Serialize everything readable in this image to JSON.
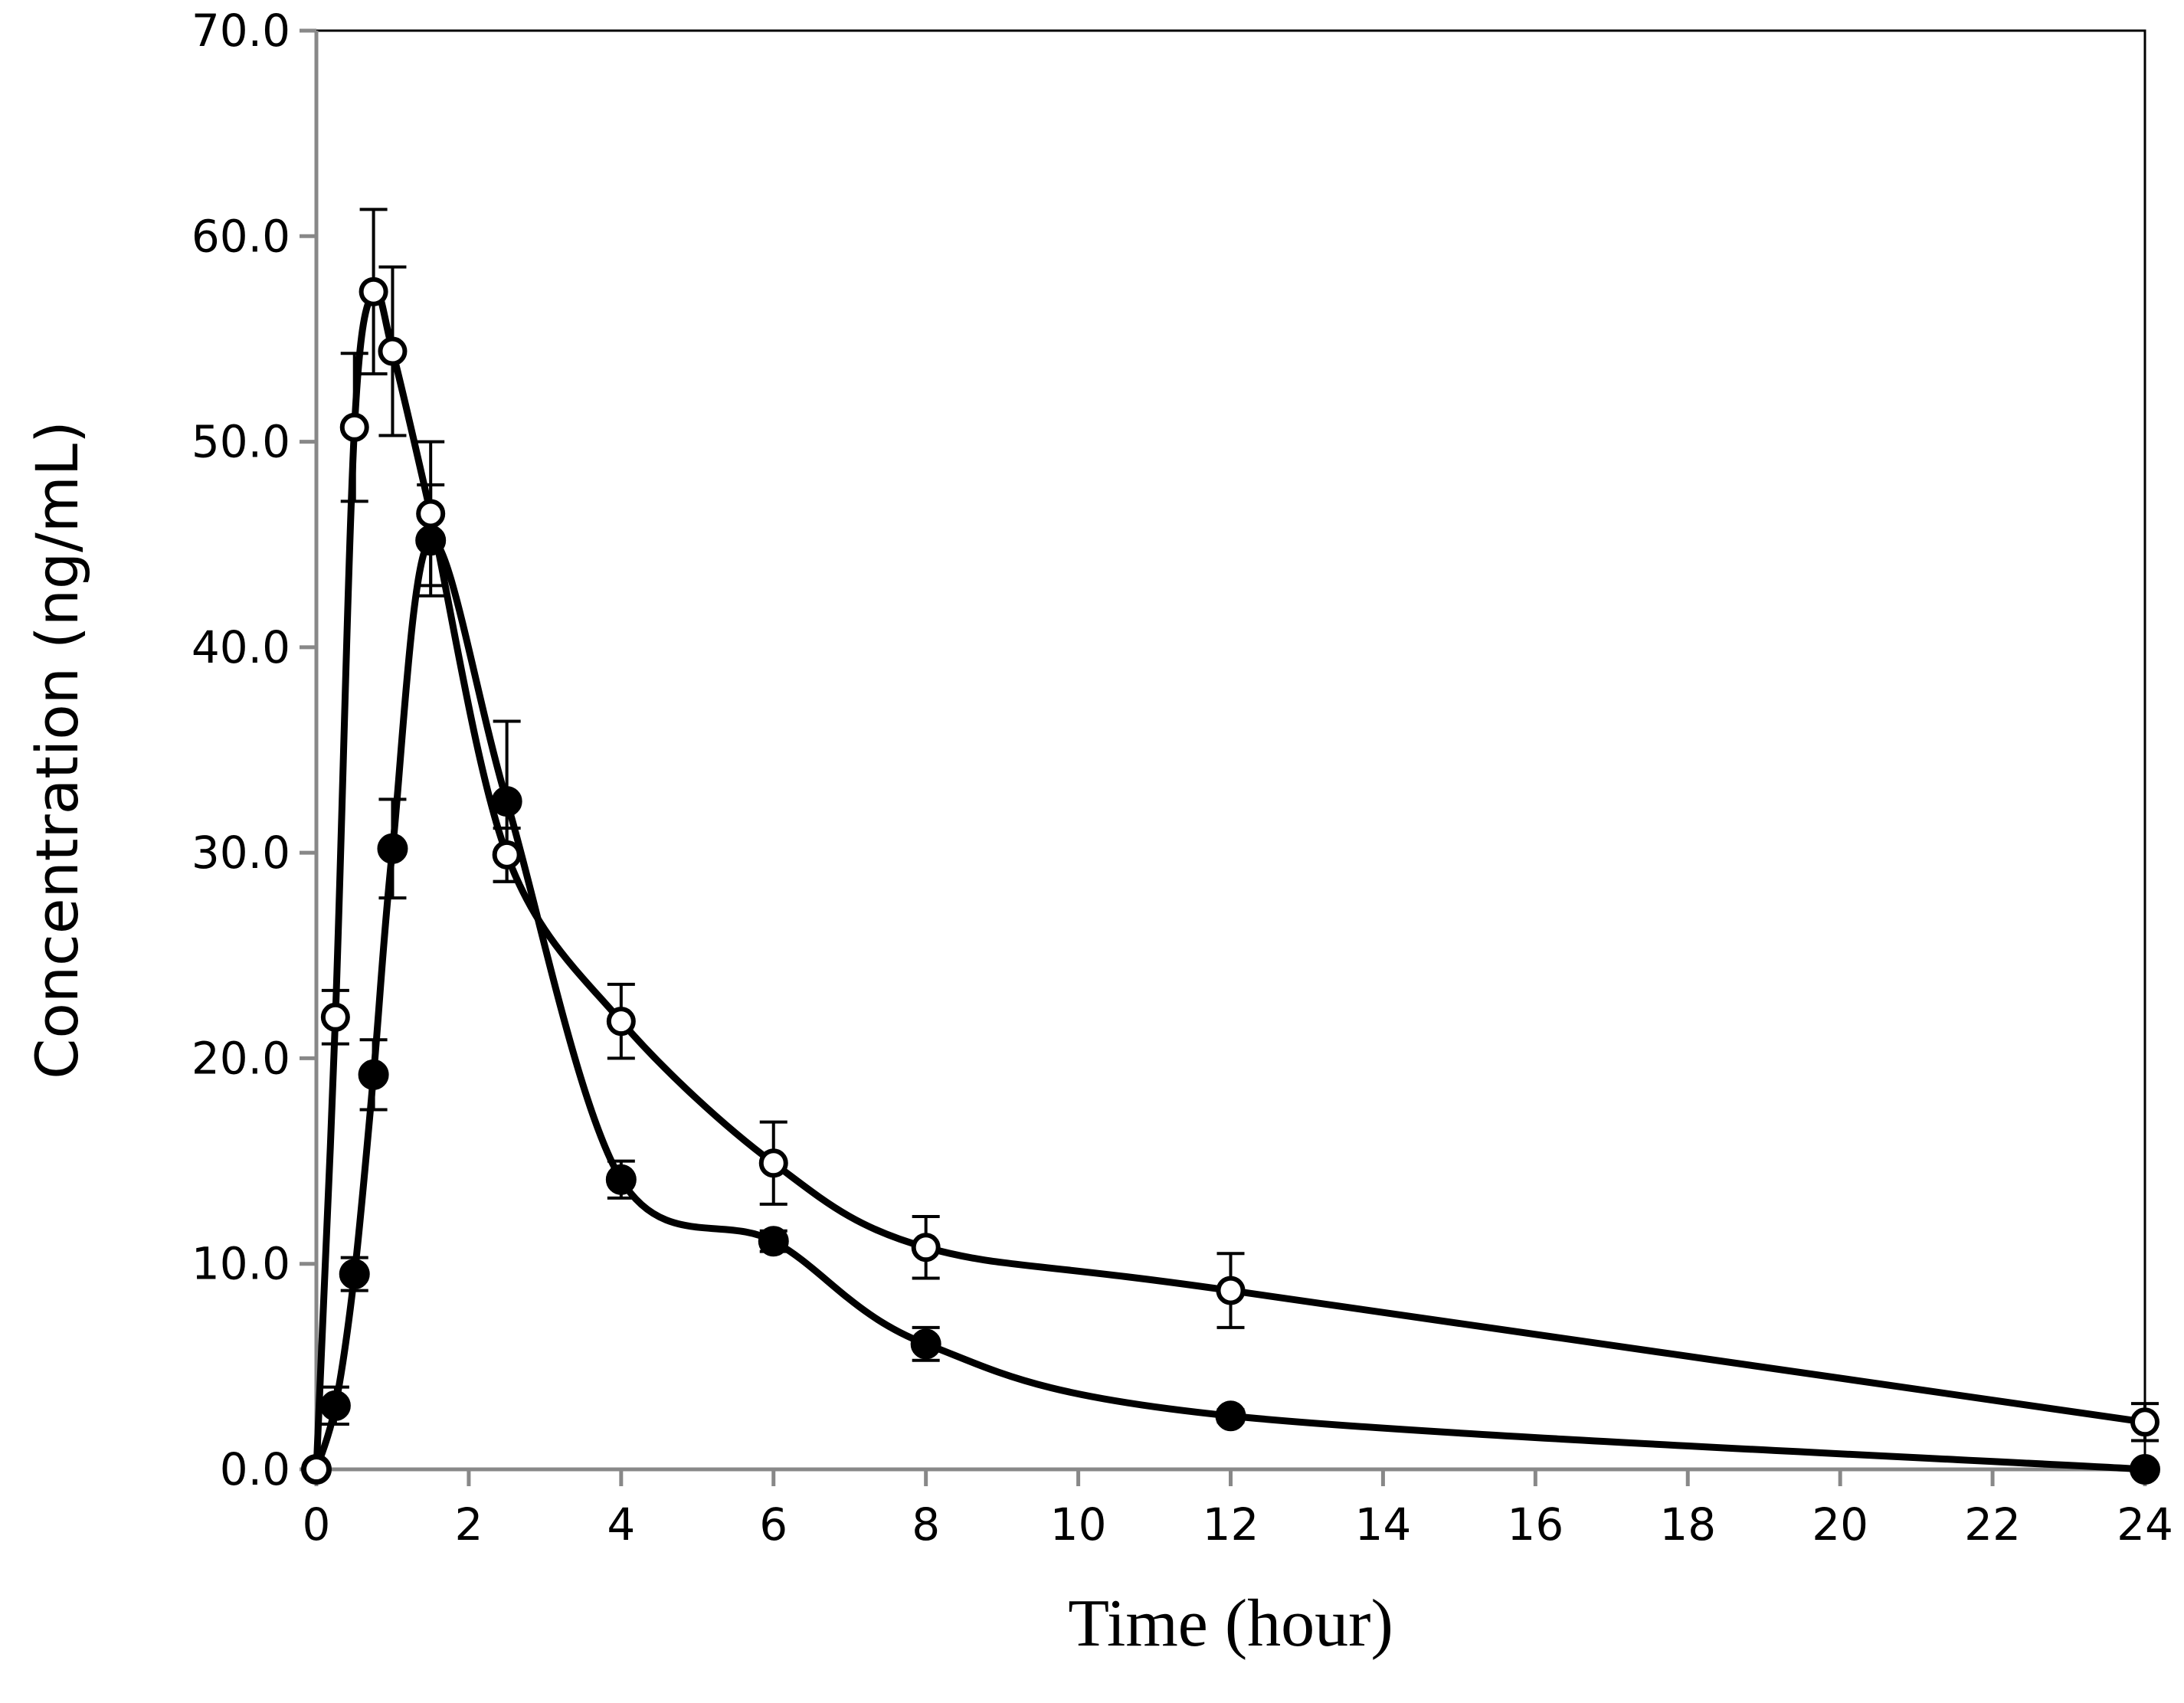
{
  "chart_data": {
    "type": "line",
    "title": "",
    "xlabel": "Time (hour)",
    "ylabel": "Concentration (ng/mL)",
    "xlim": [
      0,
      24
    ],
    "ylim": [
      0,
      70
    ],
    "xticks": [
      "0",
      "2",
      "4",
      "6",
      "8",
      "10",
      "12",
      "14",
      "16",
      "18",
      "20",
      "22",
      "24"
    ],
    "yticks": [
      "0.0",
      "10.0",
      "20.0",
      "30.0",
      "40.0",
      "50.0",
      "60.0",
      "70.0"
    ],
    "grid": false,
    "legend": "none",
    "series": [
      {
        "name": "open-circle-series",
        "marker": "open",
        "x": [
          0,
          0.25,
          0.5,
          0.75,
          1,
          1.5,
          2.5,
          4,
          6,
          8,
          12,
          24
        ],
        "y": [
          0,
          22.0,
          50.7,
          57.3,
          54.4,
          46.5,
          29.9,
          21.8,
          14.9,
          10.8,
          8.7,
          2.3
        ],
        "err": [
          0,
          1.3,
          3.6,
          4.0,
          4.1,
          3.5,
          1.3,
          1.8,
          2.0,
          1.5,
          1.8,
          0.9
        ]
      },
      {
        "name": "filled-circle-series",
        "marker": "filled",
        "x": [
          0,
          0.25,
          0.5,
          0.75,
          1,
          1.5,
          2.5,
          4,
          6,
          8,
          12,
          24
        ],
        "y": [
          0,
          3.1,
          9.5,
          19.2,
          30.2,
          45.2,
          32.5,
          14.1,
          11.1,
          6.1,
          2.6,
          0
        ],
        "err": [
          0,
          0.9,
          0.8,
          1.7,
          2.4,
          2.7,
          3.9,
          0.9,
          0.5,
          0.8,
          0.3,
          0
        ]
      }
    ]
  }
}
